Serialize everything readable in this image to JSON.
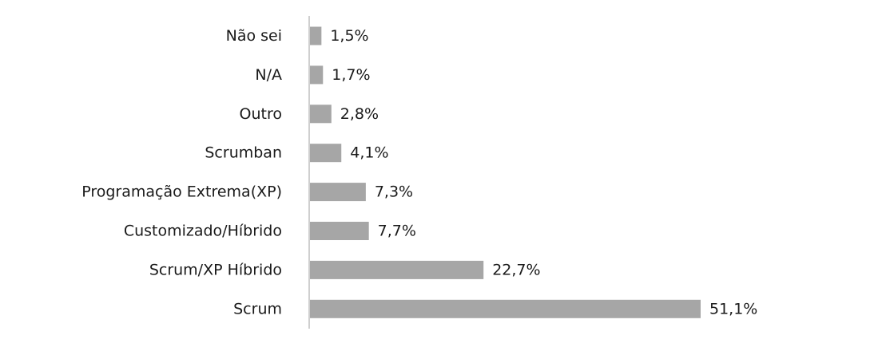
{
  "chart_data": {
    "type": "bar",
    "orientation": "horizontal",
    "categories": [
      "Não sei",
      "N/A",
      "Outro",
      "Scrumban",
      "Programação Extrema(XP)",
      "Customizado/Híbrido",
      "Scrum/XP Híbrido",
      "Scrum"
    ],
    "values": [
      1.5,
      1.7,
      2.8,
      4.1,
      7.3,
      7.7,
      22.7,
      51.1
    ],
    "value_labels": [
      "1,5%",
      "1,7%",
      "2,8%",
      "4,1%",
      "7,3%",
      "7,7%",
      "22,7%",
      "51,1%"
    ],
    "title": "",
    "xlabel": "",
    "ylabel": "",
    "xlim": [
      0,
      55
    ],
    "grid": false,
    "legend": "none",
    "bar_color": "#a6a6a6",
    "axis_color": "#bfbfbf",
    "text_color": "#1a1a1a"
  }
}
